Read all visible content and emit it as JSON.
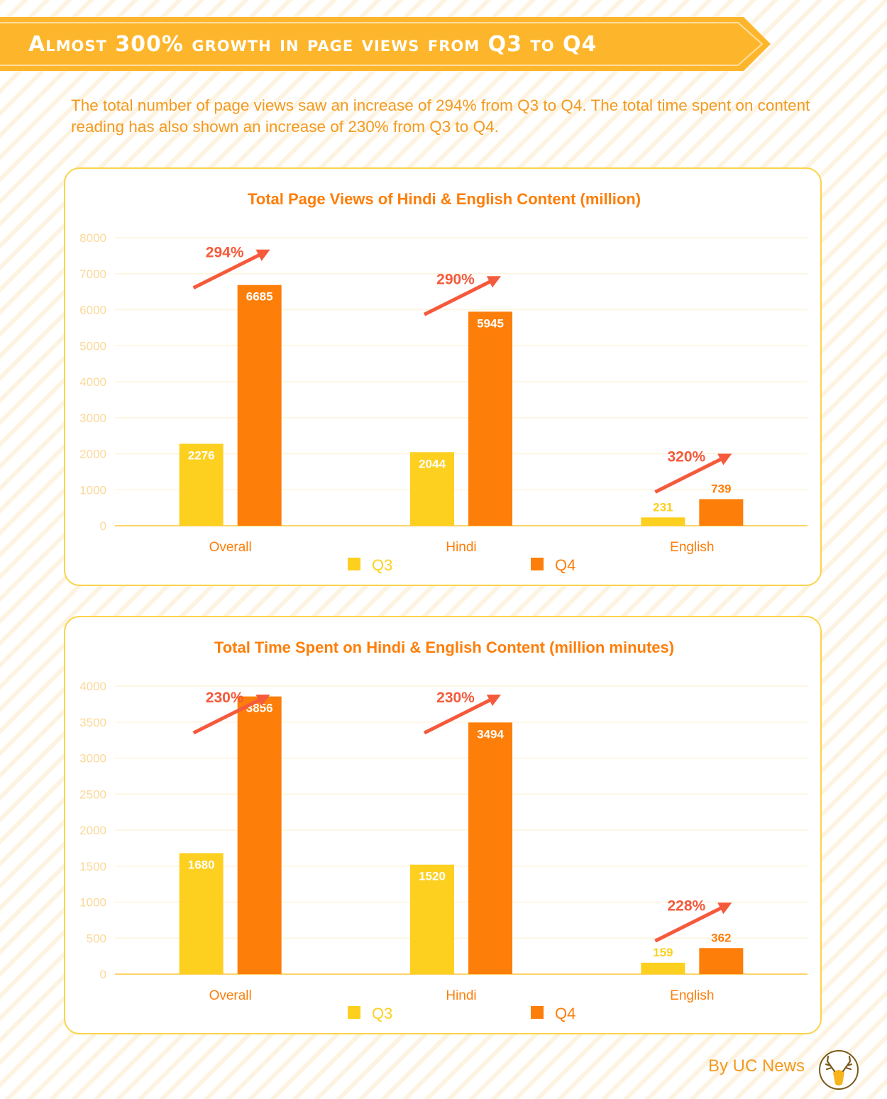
{
  "title": "Almost 300% growth in page views from Q3 to Q4",
  "intro": "The total number of page views saw an increase of  294% from Q3 to Q4. The total time spent on content reading has also shown an increase of 230% from Q3 to Q4.",
  "footer": "By UC News",
  "colors": {
    "q3": "#fdd01f",
    "q4": "#fd7e09",
    "title_text": "#fd7e09",
    "axis_text": "#fcd89a",
    "grid": "#fdf4dc",
    "growth": "#f55a3c",
    "card_border": "#fbd34a",
    "banner": "#fdb62b"
  },
  "chart_data": [
    {
      "type": "bar",
      "title": "Total Page Views  of Hindi & English Content (million)",
      "categories": [
        "Overall",
        "Hindi",
        "English"
      ],
      "series": [
        {
          "name": "Q3",
          "values": [
            2276,
            2044,
            231
          ]
        },
        {
          "name": "Q4",
          "values": [
            6685,
            5945,
            739
          ]
        }
      ],
      "growth_labels": [
        "294%",
        "290%",
        "320%"
      ],
      "ylim": [
        0,
        8000
      ],
      "yticks": [
        0,
        1000,
        2000,
        3000,
        4000,
        5000,
        6000,
        7000,
        8000
      ],
      "grid": true,
      "legend": "bottom"
    },
    {
      "type": "bar",
      "title": "Total Time Spent on Hindi & English Content (million minutes)",
      "categories": [
        "Overall",
        "Hindi",
        "English"
      ],
      "series": [
        {
          "name": "Q3",
          "values": [
            1680,
            1520,
            159
          ]
        },
        {
          "name": "Q4",
          "values": [
            3856,
            3494,
            362
          ]
        }
      ],
      "growth_labels": [
        "230%",
        "230%",
        "228%"
      ],
      "ylim": [
        0,
        4000
      ],
      "yticks": [
        0,
        500,
        1000,
        1500,
        2000,
        2500,
        3000,
        3500,
        4000
      ],
      "grid": true,
      "legend": "bottom"
    }
  ]
}
